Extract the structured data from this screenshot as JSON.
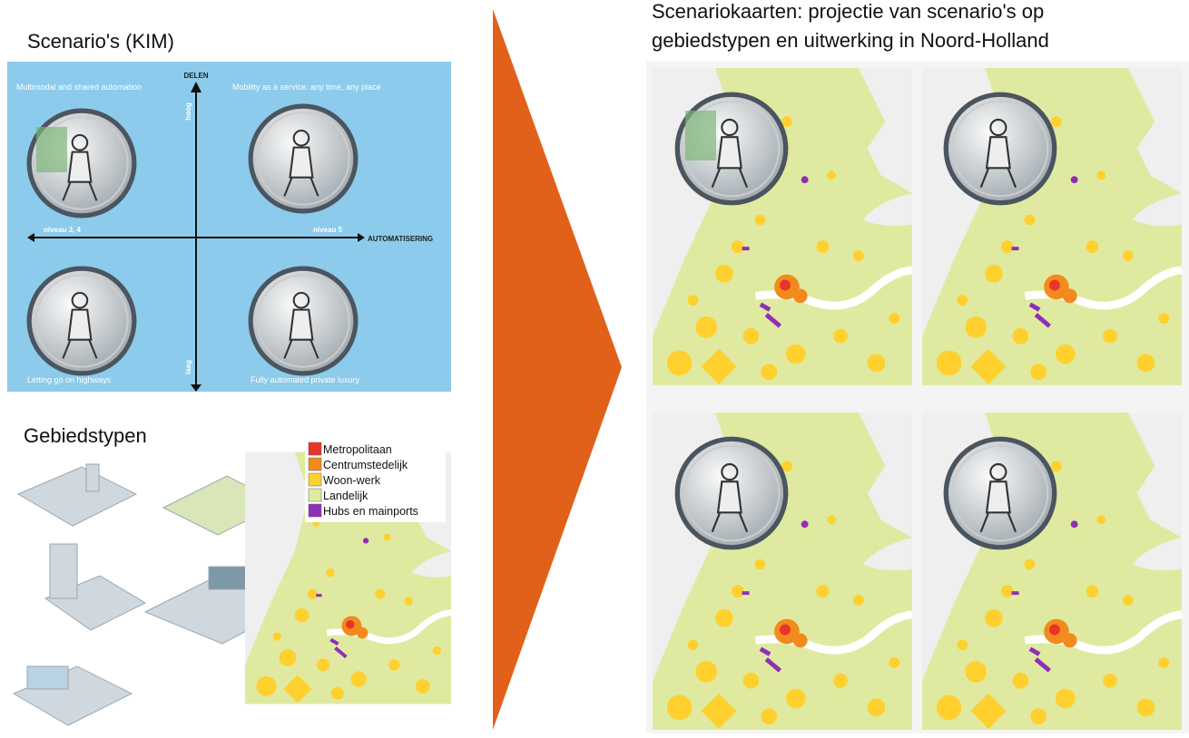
{
  "left": {
    "scenario_title": "Scenario's (KIM)",
    "quadrant": {
      "axis_top": "DELEN",
      "high": "hoog",
      "low": "laag",
      "left_level": "niveau 3, 4",
      "right_level": "niveau 5",
      "axis_right": "AUTOMATISERING",
      "scenarios": [
        "Multimodal and shared automation",
        "Mobility as a service: any time, any place",
        "Letting go on highways",
        "Fully automated private luxury"
      ]
    },
    "area_title": "Gebiedstypen",
    "legend": [
      {
        "label": "Metropolitaan",
        "color": "#e8332a"
      },
      {
        "label": "Centrumstedelijk",
        "color": "#f28a1e"
      },
      {
        "label": "Woon-werk",
        "color": "#ffd02e"
      },
      {
        "label": "Landelijk",
        "color": "#dfeaa0"
      },
      {
        "label": "Hubs en mainports",
        "color": "#8e2fb5"
      }
    ]
  },
  "right": {
    "title_lines": [
      "Scenariokaarten: projectie van scenario's op",
      "gebiedstypen en uitwerking in Noord-Holland"
    ]
  }
}
